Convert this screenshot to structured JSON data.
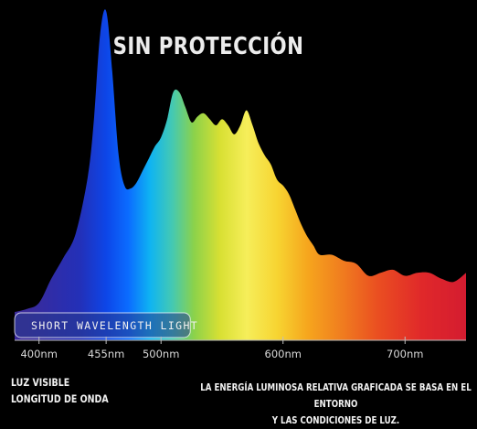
{
  "title": "SIN PROTECCIÓN",
  "band_label": "SHORT WAVELENGTH LIGHT",
  "footnote_left": [
    "LUZ VISIBLE",
    "LONGITUD DE ONDA"
  ],
  "footnote_right": [
    "LA ENERGÍA LUMINOSA RELATIVA GRAFICADA SE BASA EN EL ENTORNO",
    "Y LAS CONDICIONES DE LUZ."
  ],
  "colors": {
    "background": "#000000",
    "band_fill": "#283a8c",
    "band_border": "#ffffff"
  },
  "chart_data": {
    "type": "area",
    "title": "SIN PROTECCIÓN",
    "xlabel": "",
    "ylabel": "",
    "x_unit": "nm",
    "xlim": [
      380,
      750
    ],
    "ylim": [
      0,
      1
    ],
    "grid": false,
    "ticks": [
      {
        "value": 400,
        "label": "400nm"
      },
      {
        "value": 455,
        "label": "455nm"
      },
      {
        "value": 500,
        "label": "500nm"
      },
      {
        "value": 600,
        "label": "600nm"
      },
      {
        "value": 700,
        "label": "700nm"
      }
    ],
    "highlight_band": {
      "from": 380,
      "to": 500,
      "label": "SHORT WAVELENGTH LIGHT"
    },
    "x": [
      380,
      390,
      400,
      410,
      420,
      430,
      440,
      445,
      450,
      455,
      460,
      465,
      470,
      475,
      480,
      485,
      490,
      495,
      500,
      505,
      510,
      515,
      520,
      525,
      530,
      535,
      540,
      545,
      550,
      555,
      560,
      565,
      570,
      575,
      580,
      585,
      590,
      595,
      600,
      605,
      610,
      615,
      620,
      625,
      630,
      640,
      650,
      660,
      670,
      680,
      690,
      700,
      710,
      720,
      730,
      740,
      750
    ],
    "y": [
      0.0,
      0.01,
      0.03,
      0.11,
      0.18,
      0.26,
      0.45,
      0.64,
      0.92,
      1.0,
      0.8,
      0.53,
      0.42,
      0.41,
      0.43,
      0.47,
      0.51,
      0.55,
      0.58,
      0.64,
      0.73,
      0.73,
      0.68,
      0.63,
      0.65,
      0.66,
      0.64,
      0.62,
      0.64,
      0.62,
      0.59,
      0.62,
      0.67,
      0.62,
      0.56,
      0.52,
      0.49,
      0.44,
      0.42,
      0.39,
      0.34,
      0.29,
      0.25,
      0.22,
      0.19,
      0.19,
      0.17,
      0.16,
      0.12,
      0.13,
      0.14,
      0.12,
      0.13,
      0.13,
      0.11,
      0.1,
      0.13
    ]
  }
}
